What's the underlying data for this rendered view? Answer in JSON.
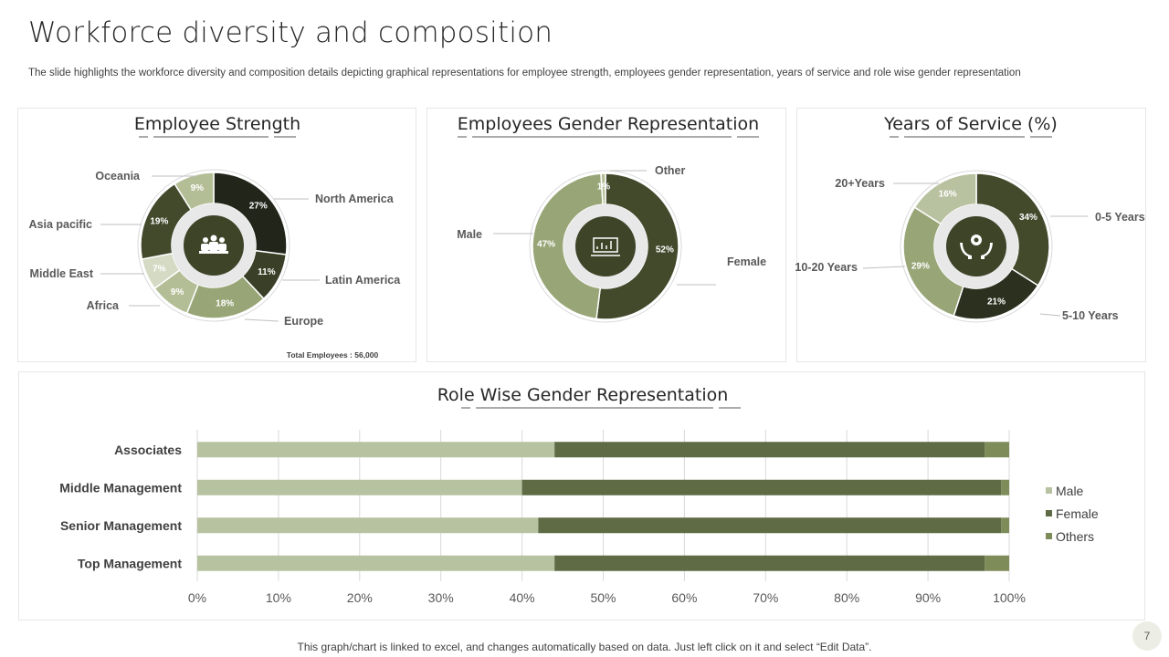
{
  "slide": {
    "title": "Workforce diversity and composition",
    "subtitle": "The slide highlights the workforce diversity and composition details depicting graphical representations for employee strength, employees gender representation, years of service and role wise gender representation",
    "footer": "This graph/chart is linked to excel,  and changes automatically based on data. Just left click on it and select “Edit Data”.",
    "page_number": "7"
  },
  "colors": {
    "dark": "#22261a",
    "olive_dark": "#434a2c",
    "olive": "#5e6b42",
    "olive_light": "#98a677",
    "sage": "#b3be96",
    "pale": "#d4dac3",
    "male": "#b7c3a0",
    "female": "#5e6b45",
    "others": "#7e8c5a"
  },
  "chart_data": [
    {
      "type": "pie",
      "title": "Employee Strength",
      "center_icon": "team-icon",
      "annotation": "Total Employees : 56,000",
      "slices": [
        {
          "label": "North America",
          "value": 27,
          "pct_label": "27%",
          "color": "#22261a"
        },
        {
          "label": "Latin America",
          "value": 11,
          "pct_label": "11%",
          "color": "#3a4027"
        },
        {
          "label": "Europe",
          "value": 18,
          "pct_label": "18%",
          "color": "#98a677"
        },
        {
          "label": "Africa",
          "value": 9,
          "pct_label": "9%",
          "color": "#b3be96"
        },
        {
          "label": "Middle East",
          "value": 7,
          "pct_label": "7%",
          "color": "#d4dac3"
        },
        {
          "label": "Asia pacific",
          "value": 19,
          "pct_label": "19%",
          "color": "#434a2c"
        },
        {
          "label": "Oceania",
          "value": 9,
          "pct_label": "9%",
          "color": "#b3be96"
        }
      ]
    },
    {
      "type": "pie",
      "title": "Employees Gender Representation",
      "center_icon": "presentation-icon",
      "slices": [
        {
          "label": "Female",
          "value": 52,
          "pct_label": "52%",
          "color": "#434a2c"
        },
        {
          "label": "Male",
          "value": 47,
          "pct_label": "47%",
          "color": "#98a677"
        },
        {
          "label": "Other",
          "value": 1,
          "pct_label": "1%",
          "color": "#b3be96"
        }
      ]
    },
    {
      "type": "pie",
      "title": "Years of Service (%)",
      "center_icon": "hands-gear-icon",
      "slices": [
        {
          "label": "0-5 Years",
          "value": 34,
          "pct_label": "34%",
          "color": "#434a2c"
        },
        {
          "label": "5-10 Years",
          "value": 21,
          "pct_label": "21%",
          "color": "#2b301f"
        },
        {
          "label": "10-20 Years",
          "value": 29,
          "pct_label": "29%",
          "color": "#98a677"
        },
        {
          "label": "20+Years",
          "value": 16,
          "pct_label": "16%",
          "color": "#b8c2a0"
        }
      ]
    },
    {
      "type": "bar",
      "orientation": "horizontal",
      "stacked": "percent",
      "title": "Role Wise Gender Representation",
      "categories": [
        "Associates",
        "Middle Management",
        "Senior Management",
        "Top Management"
      ],
      "series": [
        {
          "name": "Male",
          "values": [
            44,
            40,
            42,
            44
          ]
        },
        {
          "name": "Female",
          "values": [
            53,
            59,
            57,
            53
          ]
        },
        {
          "name": "Others",
          "values": [
            3,
            1,
            1,
            3
          ]
        }
      ],
      "xlim": [
        0,
        100
      ],
      "xticks": [
        "0%",
        "10%",
        "20%",
        "30%",
        "40%",
        "50%",
        "60%",
        "70%",
        "80%",
        "90%",
        "100%"
      ],
      "legend": "right",
      "grid": true
    }
  ]
}
